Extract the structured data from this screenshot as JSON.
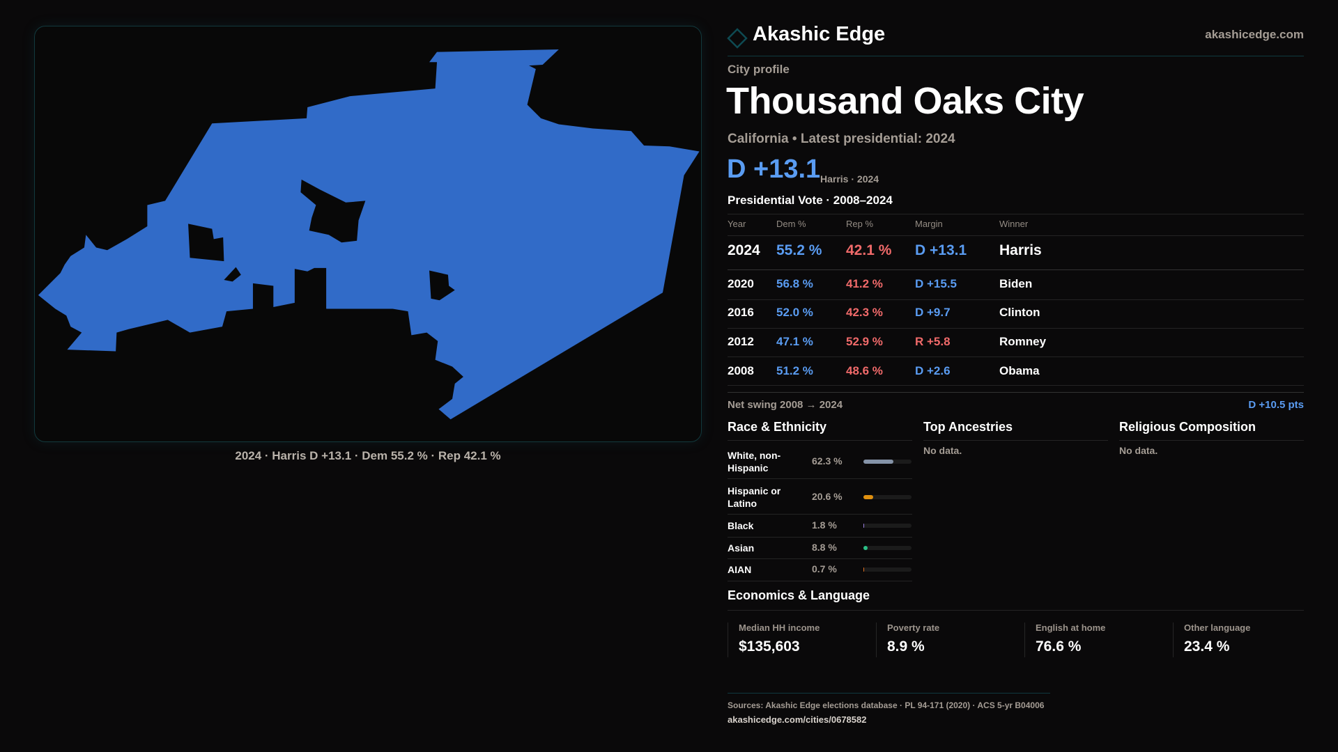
{
  "map": {
    "caption": "2024 · Harris D +13.1 · Dem 55.2 % · Rep 42.1 %",
    "fill_color": "#316BC8"
  },
  "header": {
    "brand": "Akashic Edge",
    "site": "akashicedge.com"
  },
  "profile": {
    "kicker": "City profile",
    "title": "Thousand Oaks City",
    "subtitle": "California • Latest presidential: 2024",
    "margin": "D +13.1",
    "margin_note": "Harris · 2024"
  },
  "votes": {
    "title": "Presidential Vote · 2008–2024",
    "headers": [
      "Year",
      "Dem %",
      "Rep %",
      "Margin",
      "Winner"
    ],
    "rows": [
      {
        "year": "2024",
        "dem": "55.2 %",
        "rep": "42.1 %",
        "margin": "D +13.1",
        "winner": "Harris",
        "party": "D"
      },
      {
        "year": "2020",
        "dem": "56.8 %",
        "rep": "41.2 %",
        "margin": "D +15.5",
        "winner": "Biden",
        "party": "D"
      },
      {
        "year": "2016",
        "dem": "52.0 %",
        "rep": "42.3 %",
        "margin": "D +9.7",
        "winner": "Clinton",
        "party": "D"
      },
      {
        "year": "2012",
        "dem": "47.1 %",
        "rep": "52.9 %",
        "margin": "R +5.8",
        "winner": "Romney",
        "party": "R"
      },
      {
        "year": "2008",
        "dem": "51.2 %",
        "rep": "48.6 %",
        "margin": "D +2.6",
        "winner": "Obama",
        "party": "D"
      }
    ],
    "swing_label": "Net swing 2008 → 2024",
    "swing_value": "D +10.5 pts"
  },
  "race": {
    "title": "Race & Ethnicity",
    "rows": [
      {
        "label": "White, non-Hispanic",
        "pct": "62.3 %",
        "value": 62.3,
        "color": "#8593a8"
      },
      {
        "label": "Hispanic or Latino",
        "pct": "20.6 %",
        "value": 20.6,
        "color": "#e0900f"
      },
      {
        "label": "Black",
        "pct": "1.8 %",
        "value": 1.8,
        "color": "#9a7fe0"
      },
      {
        "label": "Asian",
        "pct": "8.8 %",
        "value": 8.8,
        "color": "#2bbf86"
      },
      {
        "label": "AIAN",
        "pct": "0.7 %",
        "value": 0.7,
        "color": "#e0701f"
      }
    ]
  },
  "ancestries": {
    "title": "Top Ancestries",
    "empty": "No data."
  },
  "religion": {
    "title": "Religious Composition",
    "empty": "No data."
  },
  "economics": {
    "title": "Economics & Language",
    "stats": [
      {
        "label": "Median HH income",
        "value": "$135,603"
      },
      {
        "label": "Poverty rate",
        "value": "8.9 %"
      },
      {
        "label": "English at home",
        "value": "76.6 %"
      },
      {
        "label": "Other language",
        "value": "23.4 %"
      }
    ]
  },
  "footer": {
    "sources": "Sources: Akashic Edge elections database · PL 94-171 (2020) · ACS 5-yr B04006",
    "url": "akashicedge.com/cities/0678582"
  }
}
